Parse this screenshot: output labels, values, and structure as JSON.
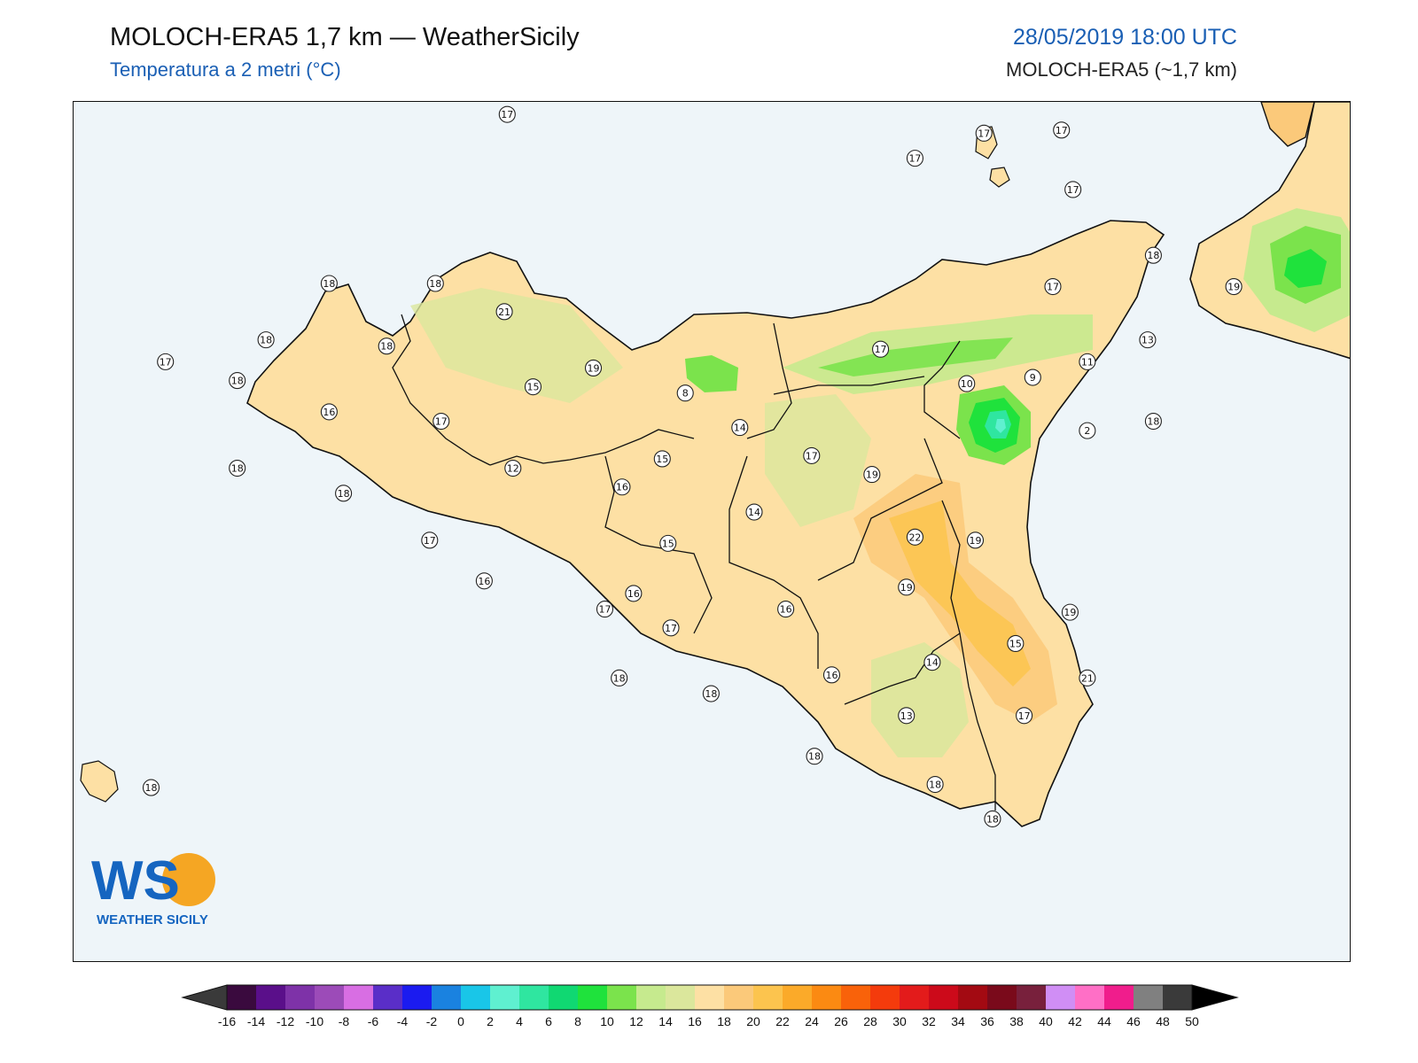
{
  "header": {
    "title": "MOLOCH-ERA5 1,7 km — WeatherSicily",
    "subtitle": "Temperatura a 2 metri (°C)",
    "datetime": "28/05/2019 18:00 UTC",
    "model": "MOLOCH-ERA5 (~1,7 km)"
  },
  "logo": {
    "initials": "WS",
    "name": "WEATHER SICILY"
  },
  "colors": {
    "sea": "#eef5f9",
    "t13": "#c6ea8e",
    "t14": "#dbe79c",
    "t16": "#fde0a4",
    "t18": "#fbc97a",
    "t20": "#fcc44e",
    "t10": "#7be34c",
    "t8": "#1fe23c",
    "t4": "#2fe6a0",
    "t2": "#5ff0d0",
    "logo_blue": "#1565c0",
    "logo_orange": "#f5a623"
  },
  "stations": [
    {
      "value": "17",
      "lon": 13.16,
      "lat": 38.71
    },
    {
      "value": "17",
      "lon": 14.58,
      "lat": 38.57
    },
    {
      "value": "17",
      "lon": 14.82,
      "lat": 38.65
    },
    {
      "value": "17",
      "lon": 15.09,
      "lat": 38.66
    },
    {
      "value": "17",
      "lon": 15.13,
      "lat": 38.47
    },
    {
      "value": "18",
      "lon": 15.41,
      "lat": 38.26
    },
    {
      "value": "19",
      "lon": 15.69,
      "lat": 38.16
    },
    {
      "value": "17",
      "lon": 15.06,
      "lat": 38.16
    },
    {
      "value": "18",
      "lon": 12.54,
      "lat": 38.17
    },
    {
      "value": "18",
      "lon": 12.91,
      "lat": 38.17
    },
    {
      "value": "21",
      "lon": 13.15,
      "lat": 38.08
    },
    {
      "value": "18",
      "lon": 12.32,
      "lat": 37.99
    },
    {
      "value": "18",
      "lon": 12.74,
      "lat": 37.97
    },
    {
      "value": "13",
      "lon": 15.39,
      "lat": 37.99
    },
    {
      "value": "17",
      "lon": 14.46,
      "lat": 37.96
    },
    {
      "value": "11",
      "lon": 15.18,
      "lat": 37.92
    },
    {
      "value": "19",
      "lon": 13.46,
      "lat": 37.9
    },
    {
      "value": "17",
      "lon": 11.97,
      "lat": 37.92
    },
    {
      "value": "18",
      "lon": 12.22,
      "lat": 37.86
    },
    {
      "value": "9",
      "lon": 14.99,
      "lat": 37.87
    },
    {
      "value": "10",
      "lon": 14.76,
      "lat": 37.85
    },
    {
      "value": "15",
      "lon": 13.25,
      "lat": 37.84
    },
    {
      "value": "8",
      "lon": 13.78,
      "lat": 37.82
    },
    {
      "value": "16",
      "lon": 12.54,
      "lat": 37.76
    },
    {
      "value": "17",
      "lon": 12.93,
      "lat": 37.73
    },
    {
      "value": "18",
      "lon": 15.41,
      "lat": 37.73
    },
    {
      "value": "2",
      "lon": 15.18,
      "lat": 37.7
    },
    {
      "value": "14",
      "lon": 13.97,
      "lat": 37.71
    },
    {
      "value": "17",
      "lon": 14.22,
      "lat": 37.62
    },
    {
      "value": "15",
      "lon": 13.7,
      "lat": 37.61
    },
    {
      "value": "18",
      "lon": 12.22,
      "lat": 37.58
    },
    {
      "value": "12",
      "lon": 13.18,
      "lat": 37.58
    },
    {
      "value": "19",
      "lon": 14.43,
      "lat": 37.56
    },
    {
      "value": "16",
      "lon": 13.56,
      "lat": 37.52
    },
    {
      "value": "18",
      "lon": 12.59,
      "lat": 37.5
    },
    {
      "value": "14",
      "lon": 14.02,
      "lat": 37.44
    },
    {
      "value": "22",
      "lon": 14.58,
      "lat": 37.36
    },
    {
      "value": "19",
      "lon": 14.79,
      "lat": 37.35
    },
    {
      "value": "17",
      "lon": 12.89,
      "lat": 37.35
    },
    {
      "value": "15",
      "lon": 13.72,
      "lat": 37.34
    },
    {
      "value": "16",
      "lon": 13.08,
      "lat": 37.22
    },
    {
      "value": "19",
      "lon": 14.55,
      "lat": 37.2
    },
    {
      "value": "16",
      "lon": 13.6,
      "lat": 37.18
    },
    {
      "value": "17",
      "lon": 13.5,
      "lat": 37.13
    },
    {
      "value": "16",
      "lon": 14.13,
      "lat": 37.13
    },
    {
      "value": "19",
      "lon": 15.12,
      "lat": 37.12
    },
    {
      "value": "17",
      "lon": 13.73,
      "lat": 37.07
    },
    {
      "value": "15",
      "lon": 14.93,
      "lat": 37.02
    },
    {
      "value": "14",
      "lon": 14.64,
      "lat": 36.96
    },
    {
      "value": "18",
      "lon": 13.55,
      "lat": 36.91
    },
    {
      "value": "16",
      "lon": 14.29,
      "lat": 36.92
    },
    {
      "value": "21",
      "lon": 15.18,
      "lat": 36.91
    },
    {
      "value": "18",
      "lon": 13.87,
      "lat": 36.86
    },
    {
      "value": "13",
      "lon": 14.55,
      "lat": 36.79
    },
    {
      "value": "17",
      "lon": 14.96,
      "lat": 36.79
    },
    {
      "value": "18",
      "lon": 14.23,
      "lat": 36.66
    },
    {
      "value": "18",
      "lon": 14.65,
      "lat": 36.57
    },
    {
      "value": "18",
      "lon": 11.92,
      "lat": 36.56
    },
    {
      "value": "18",
      "lon": 14.85,
      "lat": 36.46
    }
  ],
  "legend": {
    "ticks": [
      "-16",
      "-14",
      "-12",
      "-10",
      "-8",
      "-6",
      "-4",
      "-2",
      "0",
      "2",
      "4",
      "6",
      "8",
      "10",
      "12",
      "14",
      "16",
      "18",
      "20",
      "22",
      "24",
      "26",
      "28",
      "30",
      "32",
      "34",
      "36",
      "38",
      "40",
      "42",
      "44",
      "46",
      "48",
      "50"
    ],
    "colors": [
      "#3a0a3e",
      "#5a0f8a",
      "#7e32a8",
      "#9c4bb8",
      "#d86ee3",
      "#5a2ec8",
      "#1b1bf0",
      "#1a82e0",
      "#19c6e8",
      "#5ff0d0",
      "#2fe6a0",
      "#10d872",
      "#1fe23c",
      "#7be34c",
      "#c6ea8e",
      "#dbe79c",
      "#fde0a4",
      "#fbc97a",
      "#fcc44e",
      "#fbaa29",
      "#fb8a12",
      "#f9620a",
      "#f43b0c",
      "#e31b1b",
      "#cc0a1a",
      "#a30a12",
      "#7a0a1b",
      "#78203c",
      "#d08ef5",
      "#ff6fc6",
      "#f01d8c",
      "#808080",
      "#3a3a3a"
    ]
  }
}
